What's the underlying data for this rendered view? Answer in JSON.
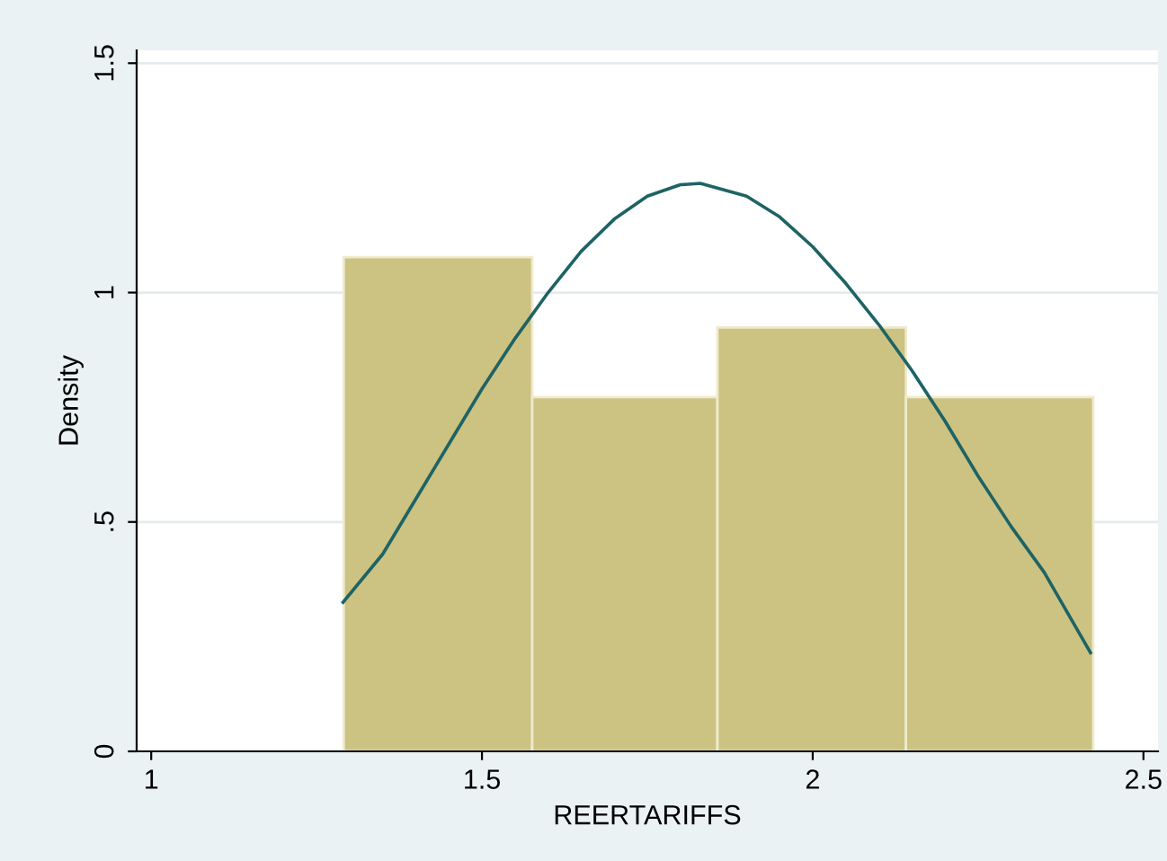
{
  "chart_data": {
    "type": "histogram",
    "xlabel": "REERTARIFFS",
    "ylabel": "Density",
    "bins": [
      1.291,
      1.576,
      1.856,
      2.141,
      2.424
    ],
    "values": [
      1.077,
      0.772,
      0.924,
      0.772
    ],
    "color": "#ccc282",
    "series": [
      {
        "type": "line",
        "color": "#1e6364",
        "x": [
          1.29,
          1.35,
          1.4,
          1.45,
          1.5,
          1.55,
          1.6,
          1.65,
          1.7,
          1.75,
          1.8,
          1.83,
          1.9,
          1.95,
          2.0,
          2.05,
          2.1,
          2.15,
          2.2,
          2.25,
          2.3,
          2.35,
          2.42
        ],
        "values": [
          0.325,
          0.43,
          0.55,
          0.67,
          0.79,
          0.9,
          1.0,
          1.09,
          1.16,
          1.21,
          1.235,
          1.238,
          1.21,
          1.165,
          1.1,
          1.02,
          0.93,
          0.83,
          0.72,
          0.6,
          0.49,
          0.39,
          0.215
        ]
      }
    ],
    "xlim": [
      0.978,
      2.522
    ],
    "ylim": [
      0,
      1.528
    ],
    "xticks": [
      1,
      1.5,
      2,
      2.5
    ],
    "yticks": [
      {
        "value": 0,
        "label": "0"
      },
      {
        "value": 0.5,
        "label": ".5"
      },
      {
        "value": 1,
        "label": "1"
      },
      {
        "value": 1.5,
        "label": "1.5"
      }
    ],
    "grid": "y"
  }
}
